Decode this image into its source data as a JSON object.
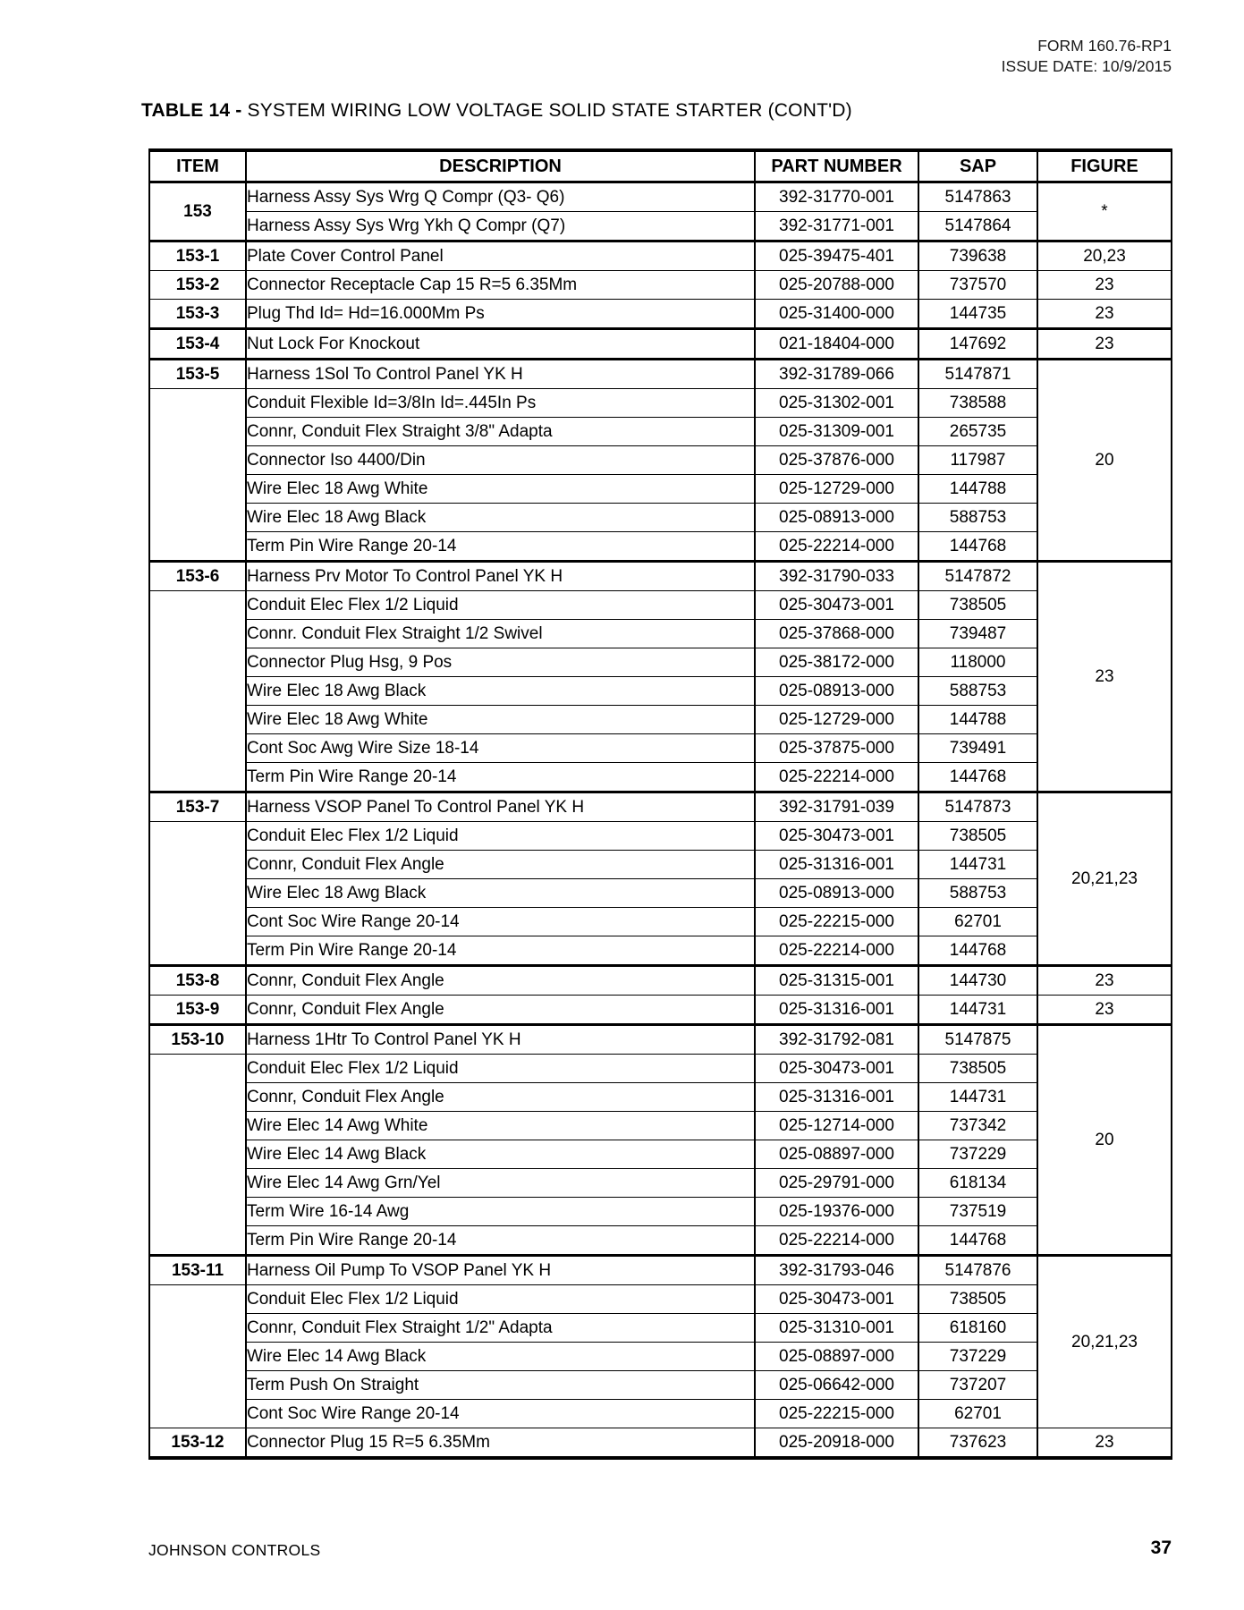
{
  "style": {
    "ink": "#000000",
    "paper": "#ffffff"
  },
  "header": {
    "form_number": "FORM 160.76-RP1",
    "issue_date": "ISSUE DATE: 10/9/2015"
  },
  "title": {
    "prefix": "TABLE 14 - ",
    "text": "SYSTEM WIRING LOW VOLTAGE SOLID STATE STARTER (CONT'D)"
  },
  "footer": {
    "company": "JOHNSON CONTROLS",
    "page_number": "37"
  },
  "table": {
    "headers": [
      "ITEM",
      "DESCRIPTION",
      "PART NUMBER",
      "SAP",
      "FIGURE"
    ],
    "rows": [
      {
        "item": "153",
        "item_rows": 2,
        "desc": "Harness Assy Sys Wrg Q Compr (Q3- Q6)",
        "part": "392-31770-001",
        "sap": "5147863",
        "fig": "*",
        "fig_rows": 2
      },
      {
        "desc": "Harness Assy Sys Wrg Ykh Q Compr (Q7)",
        "part": "392-31771-001",
        "sap": "5147864"
      },
      {
        "item": "153-1",
        "desc": "Plate Cover Control Panel",
        "part": "025-39475-401",
        "sap": "739638",
        "fig": "20,23",
        "thick": true
      },
      {
        "item": "153-2",
        "desc": "Connector Receptacle Cap 15 R=5 6.35Mm",
        "part": "025-20788-000",
        "sap": "737570",
        "fig": "23"
      },
      {
        "item": "153-3",
        "desc": "Plug Thd Id= Hd=16.000Mm Ps",
        "part": "025-31400-000",
        "sap": "144735",
        "fig": "23"
      },
      {
        "item": "153-4",
        "desc": "Nut Lock For Knockout",
        "part": "021-18404-000",
        "sap": "147692",
        "fig": "23",
        "thick": true
      },
      {
        "item": "153-5",
        "desc": "Harness 1Sol To Control Panel YK H",
        "part": "392-31789-066",
        "sap": "5147871",
        "fig": "20",
        "fig_rows": 7,
        "thick": true
      },
      {
        "item": "",
        "item_rows": 6,
        "desc": "Conduit Flexible Id=3/8In Id=.445In Ps",
        "part": "025-31302-001",
        "sap": "738588"
      },
      {
        "desc": "Connr, Conduit Flex Straight 3/8\" Adapta",
        "part": "025-31309-001",
        "sap": "265735"
      },
      {
        "desc": "Connector Iso 4400/Din",
        "part": "025-37876-000",
        "sap": "117987"
      },
      {
        "desc": "Wire Elec 18 Awg White",
        "part": "025-12729-000",
        "sap": "144788"
      },
      {
        "desc": "Wire Elec 18 Awg Black",
        "part": "025-08913-000",
        "sap": "588753"
      },
      {
        "desc": "Term Pin Wire Range 20-14",
        "part": "025-22214-000",
        "sap": "144768"
      },
      {
        "item": "153-6",
        "desc": "Harness Prv Motor To Control Panel YK H",
        "part": "392-31790-033",
        "sap": "5147872",
        "fig": "23",
        "fig_rows": 8,
        "thick": true
      },
      {
        "item": "",
        "item_rows": 7,
        "desc": "Conduit Elec Flex 1/2 Liquid",
        "part": "025-30473-001",
        "sap": "738505"
      },
      {
        "desc": "Connr. Conduit Flex Straight 1/2 Swivel",
        "part": "025-37868-000",
        "sap": "739487"
      },
      {
        "desc": "Connector Plug Hsg, 9 Pos",
        "part": "025-38172-000",
        "sap": "118000"
      },
      {
        "desc": "Wire Elec 18 Awg Black",
        "part": "025-08913-000",
        "sap": "588753"
      },
      {
        "desc": "Wire Elec 18 Awg White",
        "part": "025-12729-000",
        "sap": "144788"
      },
      {
        "desc": "Cont Soc Awg Wire Size 18-14",
        "part": "025-37875-000",
        "sap": "739491"
      },
      {
        "desc": "Term Pin Wire Range 20-14",
        "part": "025-22214-000",
        "sap": "144768"
      },
      {
        "item": "153-7",
        "desc": "Harness VSOP Panel To Control Panel YK H",
        "part": "392-31791-039",
        "sap": "5147873",
        "fig": "20,21,23",
        "fig_rows": 6,
        "thick": true
      },
      {
        "item": "",
        "item_rows": 5,
        "desc": "Conduit Elec Flex 1/2 Liquid",
        "part": "025-30473-001",
        "sap": "738505"
      },
      {
        "desc": "Connr, Conduit Flex Angle",
        "part": "025-31316-001",
        "sap": "144731"
      },
      {
        "desc": "Wire Elec 18 Awg Black",
        "part": "025-08913-000",
        "sap": "588753"
      },
      {
        "desc": "Cont Soc Wire Range 20-14",
        "part": "025-22215-000",
        "sap": "62701"
      },
      {
        "desc": "Term Pin Wire Range 20-14",
        "part": "025-22214-000",
        "sap": "144768"
      },
      {
        "item": "153-8",
        "desc": "Connr, Conduit Flex Angle",
        "part": "025-31315-001",
        "sap": "144730",
        "fig": "23",
        "thick": true
      },
      {
        "item": "153-9",
        "desc": "Connr, Conduit Flex Angle",
        "part": "025-31316-001",
        "sap": "144731",
        "fig": "23"
      },
      {
        "item": "153-10",
        "desc": "Harness 1Htr To Control Panel YK H",
        "part": "392-31792-081",
        "sap": "5147875",
        "fig": "20",
        "fig_rows": 8,
        "thick": true
      },
      {
        "item": "",
        "item_rows": 7,
        "desc": "Conduit Elec Flex 1/2 Liquid",
        "part": "025-30473-001",
        "sap": "738505"
      },
      {
        "desc": "Connr, Conduit Flex Angle",
        "part": "025-31316-001",
        "sap": "144731"
      },
      {
        "desc": "Wire Elec 14 Awg White",
        "part": "025-12714-000",
        "sap": "737342"
      },
      {
        "desc": "Wire Elec 14 Awg Black",
        "part": "025-08897-000",
        "sap": "737229"
      },
      {
        "desc": "Wire Elec 14 Awg Grn/Yel",
        "part": "025-29791-000",
        "sap": "618134"
      },
      {
        "desc": "Term Wire 16-14 Awg",
        "part": "025-19376-000",
        "sap": "737519"
      },
      {
        "desc": "Term Pin Wire Range 20-14",
        "part": "025-22214-000",
        "sap": "144768"
      },
      {
        "item": "153-11",
        "desc": "Harness Oil Pump To VSOP Panel YK H",
        "part": "392-31793-046",
        "sap": "5147876",
        "fig": "20,21,23",
        "fig_rows": 6,
        "thick": true
      },
      {
        "item": "",
        "item_rows": 5,
        "desc": "Conduit Elec Flex 1/2 Liquid",
        "part": "025-30473-001",
        "sap": "738505"
      },
      {
        "desc": "Connr, Conduit Flex Straight 1/2\" Adapta",
        "part": "025-31310-001",
        "sap": "618160"
      },
      {
        "desc": "Wire Elec 14 Awg Black",
        "part": "025-08897-000",
        "sap": "737229"
      },
      {
        "desc": "Term Push On Straight",
        "part": "025-06642-000",
        "sap": "737207"
      },
      {
        "desc": "Cont Soc Wire Range 20-14",
        "part": "025-22215-000",
        "sap": "62701"
      },
      {
        "item": "153-12",
        "desc": "Connector Plug 15 R=5 6.35Mm",
        "part": "025-20918-000",
        "sap": "737623",
        "fig": "23"
      }
    ]
  }
}
